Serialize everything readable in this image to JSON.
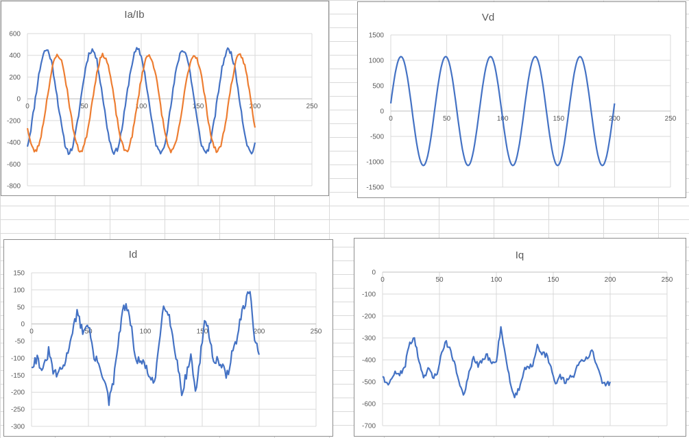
{
  "chart_data": [
    {
      "type": "line",
      "title": "Ia/Ib",
      "xlim": [
        0,
        250
      ],
      "ylim": [
        -800,
        600
      ],
      "xticks": [
        0,
        50,
        100,
        150,
        200,
        250
      ],
      "yticks": [
        600,
        400,
        200,
        0,
        -200,
        -400,
        -600,
        -800
      ],
      "grid": true,
      "series": [
        {
          "color": "#4472c4",
          "wave": {
            "n": 200,
            "amp": 470,
            "period": 40,
            "phase_deg": -60,
            "offset": -20,
            "noise": 25,
            "seed": 11
          }
        },
        {
          "color": "#ed7d31",
          "wave": {
            "n": 200,
            "amp": 440,
            "period": 40,
            "phase_deg": -150,
            "offset": -40,
            "noise": 20,
            "seed": 23
          }
        }
      ]
    },
    {
      "type": "line",
      "title": "Vd",
      "xlim": [
        0,
        250
      ],
      "ylim": [
        -1500,
        1500
      ],
      "xticks": [
        0,
        50,
        100,
        150,
        200,
        250
      ],
      "yticks": [
        1500,
        1000,
        500,
        0,
        -500,
        -1000,
        -1500
      ],
      "grid": true,
      "series": [
        {
          "color": "#4472c4",
          "wave": {
            "n": 200,
            "amp": 1075,
            "period": 40,
            "phase_deg": 8,
            "offset": 0,
            "noise": 0,
            "seed": 5
          }
        }
      ]
    },
    {
      "type": "line",
      "title": "Id",
      "xlim": [
        0,
        250
      ],
      "ylim": [
        -300,
        150
      ],
      "xticks": [
        0,
        50,
        100,
        150,
        200,
        250
      ],
      "yticks": [
        150,
        100,
        50,
        0,
        -50,
        -100,
        -150,
        -200,
        -250,
        -300
      ],
      "grid": true,
      "series": [
        {
          "color": "#4472c4",
          "keypoints": [
            [
              0,
              -120
            ],
            [
              5,
              -100
            ],
            [
              10,
              -140
            ],
            [
              15,
              -80
            ],
            [
              20,
              -150
            ],
            [
              25,
              -140
            ],
            [
              30,
              -110
            ],
            [
              35,
              -30
            ],
            [
              40,
              30
            ],
            [
              45,
              -20
            ],
            [
              50,
              0
            ],
            [
              55,
              -100
            ],
            [
              60,
              -120
            ],
            [
              65,
              -180
            ],
            [
              68,
              -230
            ],
            [
              72,
              -170
            ],
            [
              76,
              -60
            ],
            [
              80,
              40
            ],
            [
              84,
              50
            ],
            [
              88,
              -20
            ],
            [
              92,
              -110
            ],
            [
              96,
              -110
            ],
            [
              100,
              -120
            ],
            [
              104,
              -160
            ],
            [
              108,
              -180
            ],
            [
              112,
              -60
            ],
            [
              116,
              60
            ],
            [
              120,
              40
            ],
            [
              124,
              -40
            ],
            [
              128,
              -110
            ],
            [
              132,
              -200
            ],
            [
              136,
              -150
            ],
            [
              140,
              -90
            ],
            [
              144,
              -200
            ],
            [
              148,
              -110
            ],
            [
              152,
              15
            ],
            [
              156,
              -30
            ],
            [
              160,
              -100
            ],
            [
              164,
              -110
            ],
            [
              168,
              -130
            ],
            [
              172,
              -150
            ],
            [
              176,
              -90
            ],
            [
              180,
              -50
            ],
            [
              184,
              20
            ],
            [
              188,
              60
            ],
            [
              192,
              100
            ],
            [
              196,
              -40
            ],
            [
              200,
              -90
            ]
          ],
          "noise": 14,
          "seed": 31
        }
      ]
    },
    {
      "type": "line",
      "title": "Iq",
      "xlim": [
        0,
        250
      ],
      "ylim": [
        -700,
        0
      ],
      "xticks": [
        0,
        50,
        100,
        150,
        200,
        250
      ],
      "yticks": [
        0,
        -100,
        -200,
        -300,
        -400,
        -500,
        -600,
        -700
      ],
      "grid": true,
      "series": [
        {
          "color": "#4472c4",
          "keypoints": [
            [
              0,
              -470
            ],
            [
              5,
              -520
            ],
            [
              10,
              -460
            ],
            [
              15,
              -470
            ],
            [
              20,
              -420
            ],
            [
              24,
              -320
            ],
            [
              28,
              -300
            ],
            [
              32,
              -410
            ],
            [
              36,
              -490
            ],
            [
              40,
              -440
            ],
            [
              44,
              -480
            ],
            [
              48,
              -460
            ],
            [
              52,
              -360
            ],
            [
              56,
              -320
            ],
            [
              60,
              -360
            ],
            [
              64,
              -430
            ],
            [
              68,
              -520
            ],
            [
              72,
              -560
            ],
            [
              76,
              -460
            ],
            [
              80,
              -390
            ],
            [
              84,
              -430
            ],
            [
              88,
              -400
            ],
            [
              92,
              -380
            ],
            [
              96,
              -420
            ],
            [
              100,
              -400
            ],
            [
              104,
              -250
            ],
            [
              108,
              -380
            ],
            [
              112,
              -500
            ],
            [
              116,
              -570
            ],
            [
              120,
              -530
            ],
            [
              124,
              -450
            ],
            [
              128,
              -430
            ],
            [
              132,
              -420
            ],
            [
              136,
              -330
            ],
            [
              140,
              -370
            ],
            [
              144,
              -380
            ],
            [
              148,
              -440
            ],
            [
              152,
              -510
            ],
            [
              156,
              -470
            ],
            [
              160,
              -500
            ],
            [
              164,
              -480
            ],
            [
              168,
              -470
            ],
            [
              172,
              -420
            ],
            [
              176,
              -400
            ],
            [
              180,
              -390
            ],
            [
              184,
              -360
            ],
            [
              188,
              -420
            ],
            [
              192,
              -490
            ],
            [
              196,
              -520
            ],
            [
              200,
              -500
            ]
          ],
          "noise": 12,
          "seed": 47
        }
      ]
    }
  ]
}
